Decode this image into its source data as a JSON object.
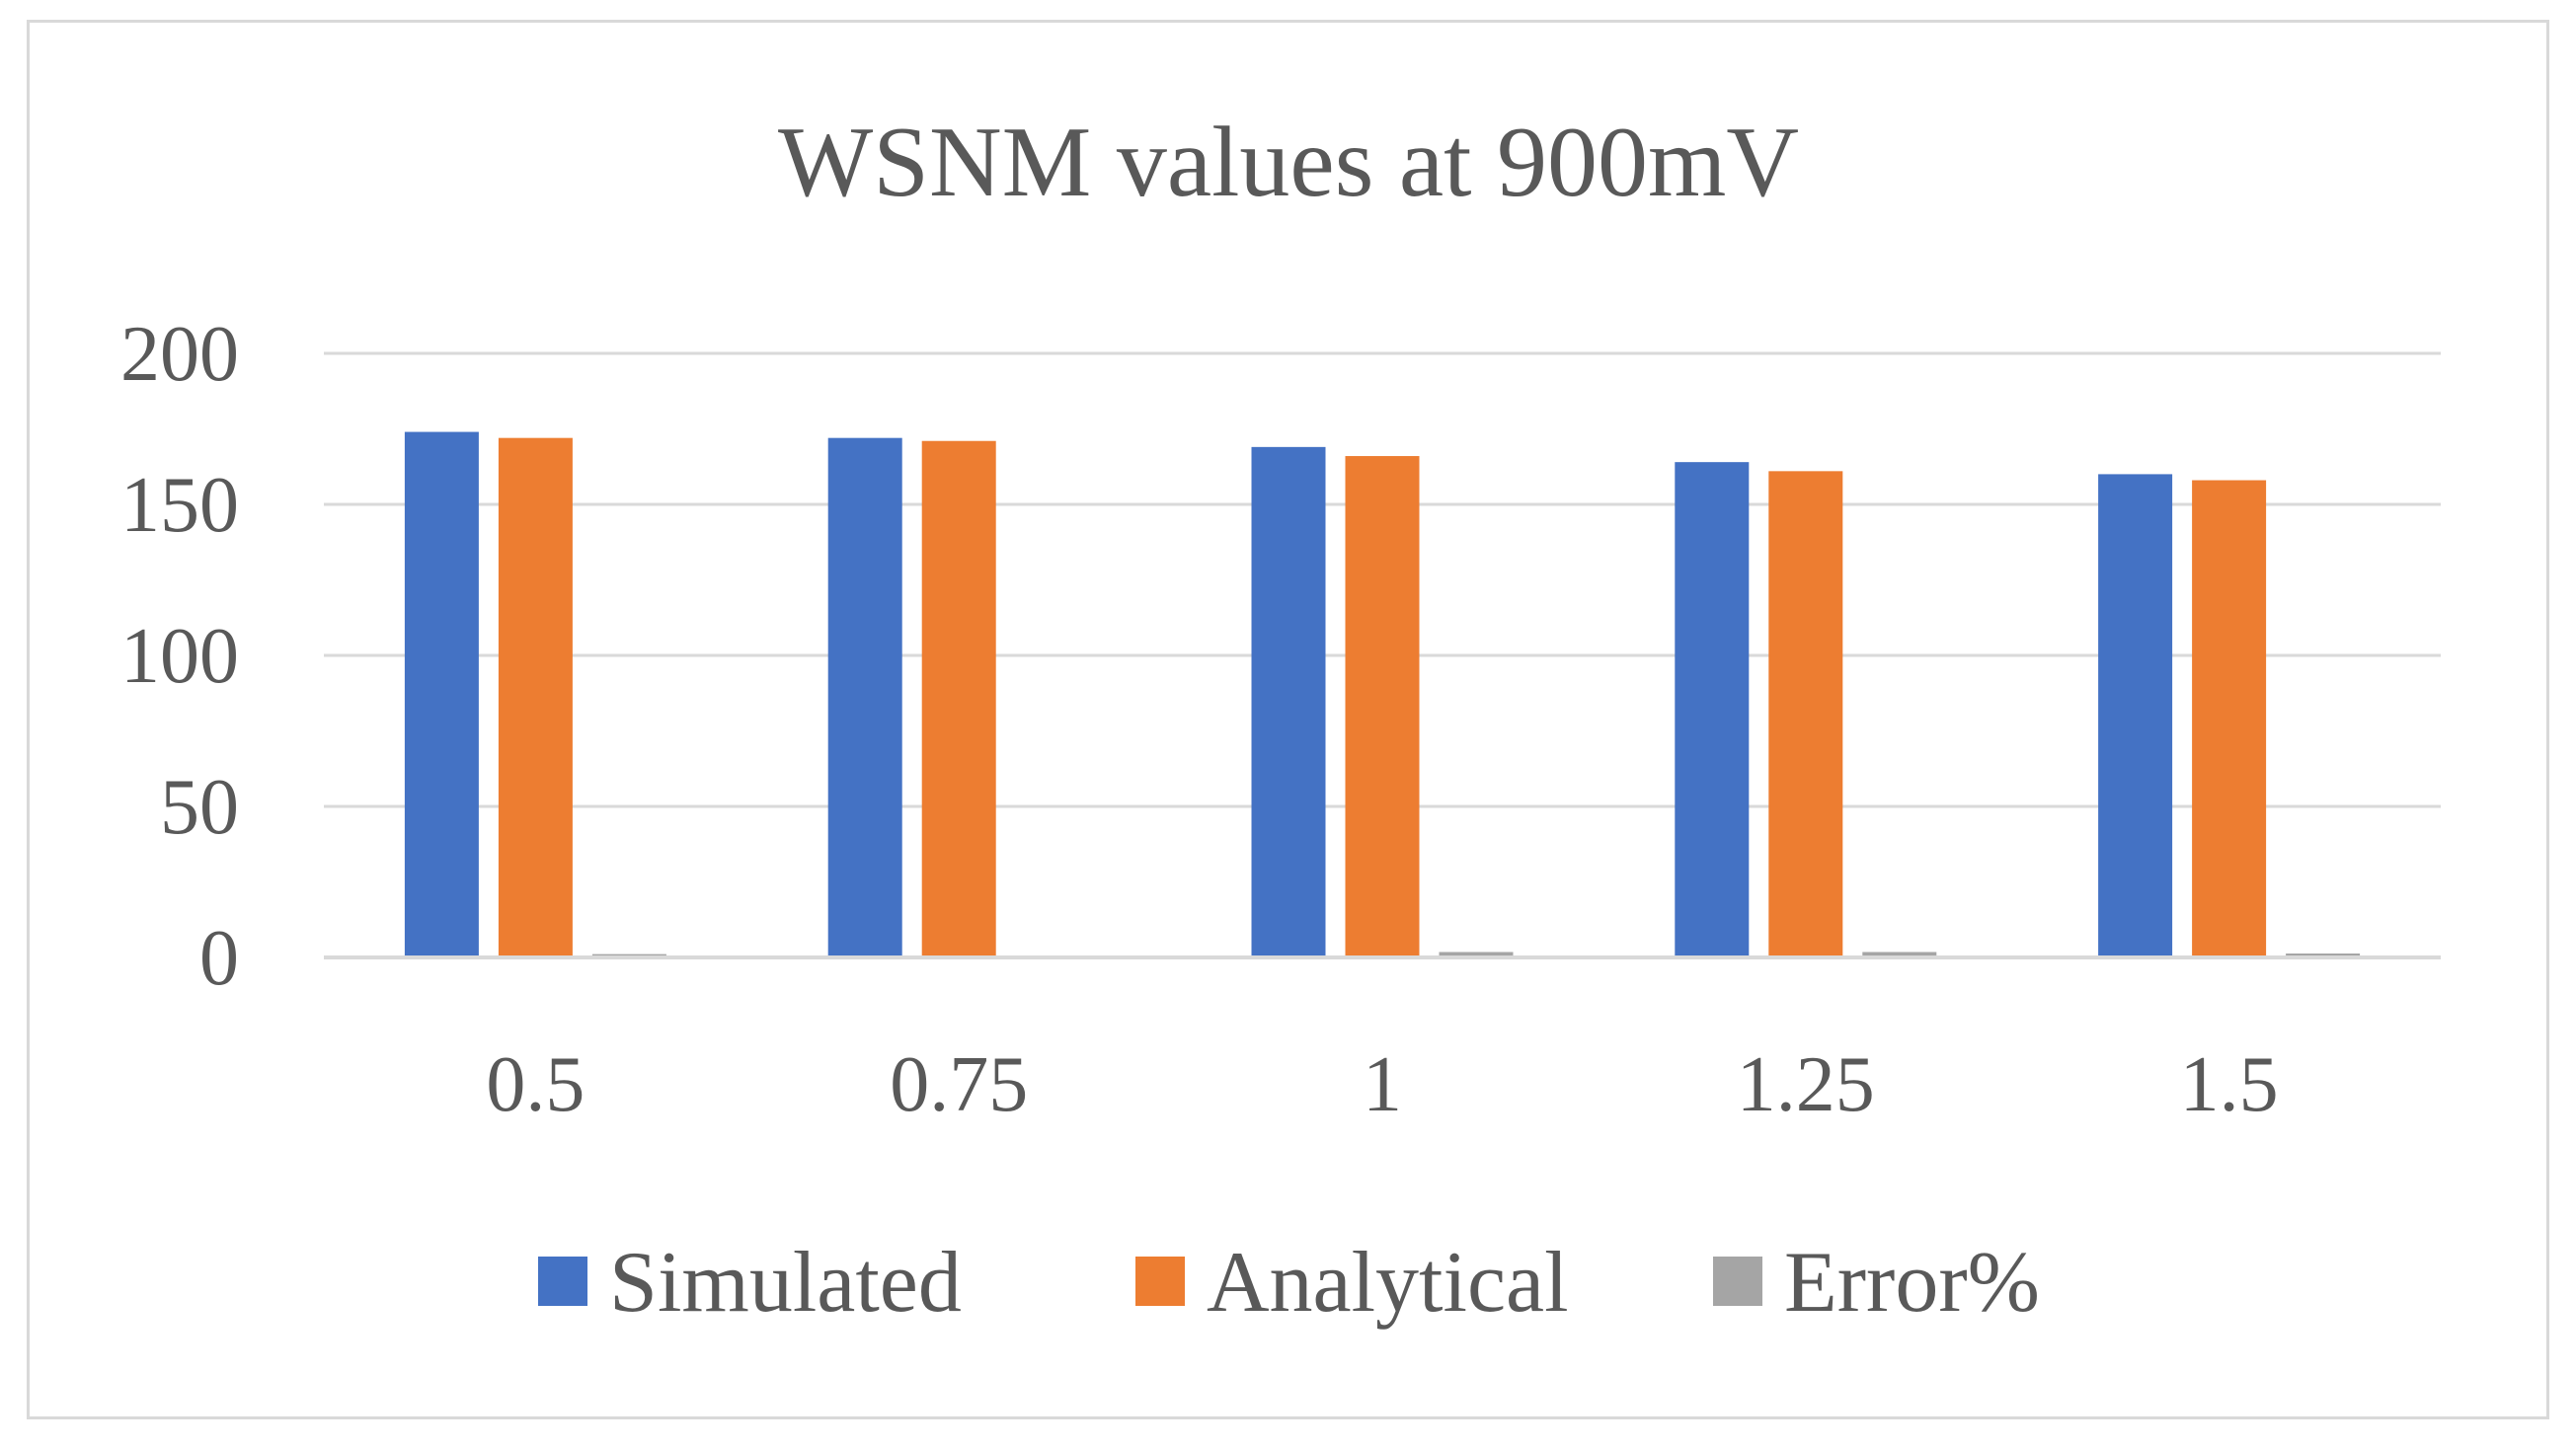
{
  "chart_data": {
    "type": "bar",
    "title": "WSNM values at 900mV",
    "xlabel": "",
    "ylabel": "",
    "categories": [
      "0.5",
      "0.75",
      "1",
      "1.25",
      "1.5"
    ],
    "ylim": [
      0,
      200
    ],
    "yticks": [
      0,
      50,
      100,
      150,
      200
    ],
    "ytick_labels": [
      "0",
      "50",
      "100",
      "150",
      "200"
    ],
    "grid": true,
    "legend_position": "bottom",
    "series": [
      {
        "name": "Simulated",
        "color": "#4472c4",
        "values": [
          174,
          172,
          169,
          164,
          160
        ]
      },
      {
        "name": "Analytical",
        "color": "#ed7d31",
        "values": [
          172,
          171,
          166,
          161,
          158
        ]
      },
      {
        "name": "Error%",
        "color": "#a5a5a5",
        "values": [
          1.1,
          0.6,
          1.8,
          1.8,
          1.3
        ]
      }
    ]
  }
}
